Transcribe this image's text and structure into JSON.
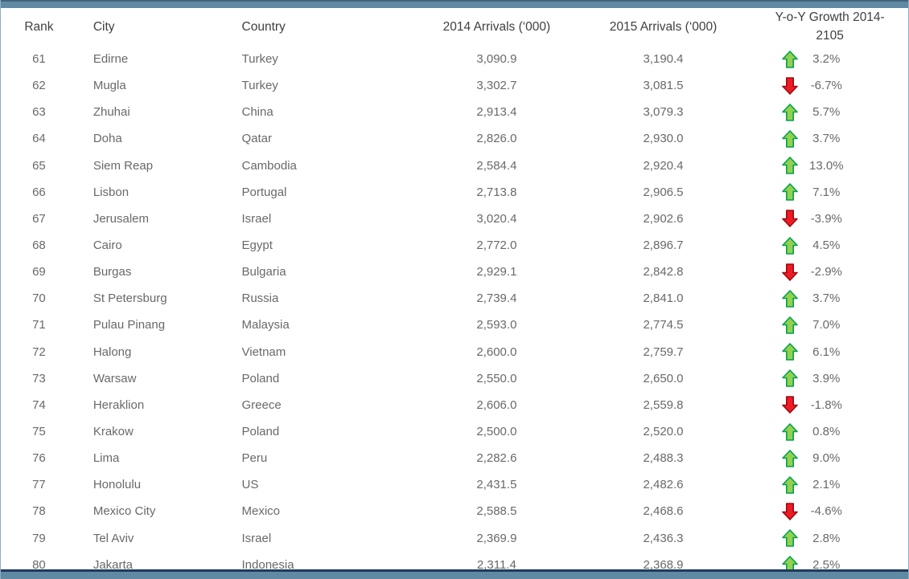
{
  "colors": {
    "top_bar": "#6089a4",
    "bottom_line": "#1f3a5c",
    "header_text": "#3f3f3f",
    "body_text": "#696969",
    "up_fill": "#92d050",
    "up_stroke": "#00a14b",
    "down_fill": "#ee1b24",
    "down_stroke": "#9e0b0f"
  },
  "table": {
    "columns": {
      "rank": "Rank",
      "city": "City",
      "country": "Country",
      "arrivals_2014": "2014 Arrivals (‘000)",
      "arrivals_2015": "2015 Arrivals (‘000)",
      "growth": "Y-o-Y Growth 2014-2105"
    },
    "rows": [
      {
        "rank": "61",
        "city": "Edirne",
        "country": "Turkey",
        "arrivals_2014": "3,090.9",
        "arrivals_2015": "3,190.4",
        "growth": "3.2%",
        "direction": "up"
      },
      {
        "rank": "62",
        "city": "Mugla",
        "country": "Turkey",
        "arrivals_2014": "3,302.7",
        "arrivals_2015": "3,081.5",
        "growth": "-6.7%",
        "direction": "down"
      },
      {
        "rank": "63",
        "city": "Zhuhai",
        "country": "China",
        "arrivals_2014": "2,913.4",
        "arrivals_2015": "3,079.3",
        "growth": "5.7%",
        "direction": "up"
      },
      {
        "rank": "64",
        "city": "Doha",
        "country": "Qatar",
        "arrivals_2014": "2,826.0",
        "arrivals_2015": "2,930.0",
        "growth": "3.7%",
        "direction": "up"
      },
      {
        "rank": "65",
        "city": "Siem Reap",
        "country": "Cambodia",
        "arrivals_2014": "2,584.4",
        "arrivals_2015": "2,920.4",
        "growth": "13.0%",
        "direction": "up"
      },
      {
        "rank": "66",
        "city": "Lisbon",
        "country": "Portugal",
        "arrivals_2014": "2,713.8",
        "arrivals_2015": "2,906.5",
        "growth": "7.1%",
        "direction": "up"
      },
      {
        "rank": "67",
        "city": "Jerusalem",
        "country": "Israel",
        "arrivals_2014": "3,020.4",
        "arrivals_2015": "2,902.6",
        "growth": "-3.9%",
        "direction": "down"
      },
      {
        "rank": "68",
        "city": "Cairo",
        "country": "Egypt",
        "arrivals_2014": "2,772.0",
        "arrivals_2015": "2,896.7",
        "growth": "4.5%",
        "direction": "up"
      },
      {
        "rank": "69",
        "city": "Burgas",
        "country": "Bulgaria",
        "arrivals_2014": "2,929.1",
        "arrivals_2015": "2,842.8",
        "growth": "-2.9%",
        "direction": "down"
      },
      {
        "rank": "70",
        "city": "St Petersburg",
        "country": "Russia",
        "arrivals_2014": "2,739.4",
        "arrivals_2015": "2,841.0",
        "growth": "3.7%",
        "direction": "up"
      },
      {
        "rank": "71",
        "city": "Pulau Pinang",
        "country": "Malaysia",
        "arrivals_2014": "2,593.0",
        "arrivals_2015": "2,774.5",
        "growth": "7.0%",
        "direction": "up"
      },
      {
        "rank": "72",
        "city": "Halong",
        "country": "Vietnam",
        "arrivals_2014": "2,600.0",
        "arrivals_2015": "2,759.7",
        "growth": "6.1%",
        "direction": "up"
      },
      {
        "rank": "73",
        "city": "Warsaw",
        "country": "Poland",
        "arrivals_2014": "2,550.0",
        "arrivals_2015": "2,650.0",
        "growth": "3.9%",
        "direction": "up"
      },
      {
        "rank": "74",
        "city": "Heraklion",
        "country": "Greece",
        "arrivals_2014": "2,606.0",
        "arrivals_2015": "2,559.8",
        "growth": "-1.8%",
        "direction": "down"
      },
      {
        "rank": "75",
        "city": "Krakow",
        "country": "Poland",
        "arrivals_2014": "2,500.0",
        "arrivals_2015": "2,520.0",
        "growth": "0.8%",
        "direction": "up"
      },
      {
        "rank": "76",
        "city": "Lima",
        "country": "Peru",
        "arrivals_2014": "2,282.6",
        "arrivals_2015": "2,488.3",
        "growth": "9.0%",
        "direction": "up"
      },
      {
        "rank": "77",
        "city": "Honolulu",
        "country": "US",
        "arrivals_2014": "2,431.5",
        "arrivals_2015": "2,482.6",
        "growth": "2.1%",
        "direction": "up"
      },
      {
        "rank": "78",
        "city": "Mexico City",
        "country": "Mexico",
        "arrivals_2014": "2,588.5",
        "arrivals_2015": "2,468.6",
        "growth": "-4.6%",
        "direction": "down"
      },
      {
        "rank": "79",
        "city": "Tel Aviv",
        "country": "Israel",
        "arrivals_2014": "2,369.9",
        "arrivals_2015": "2,436.3",
        "growth": "2.8%",
        "direction": "up"
      },
      {
        "rank": "80",
        "city": "Jakarta",
        "country": "Indonesia",
        "arrivals_2014": "2,311.4",
        "arrivals_2015": "2,368.9",
        "growth": "2.5%",
        "direction": "up"
      }
    ]
  },
  "chart_data": {
    "type": "table",
    "title": "Top City Destinations ranking, rows 61-80",
    "columns": [
      "Rank",
      "City",
      "Country",
      "2014 Arrivals (‘000)",
      "2015 Arrivals (‘000)",
      "Y-o-Y Growth 2014-2105"
    ],
    "rows": [
      [
        61,
        "Edirne",
        "Turkey",
        3090.9,
        3190.4,
        3.2
      ],
      [
        62,
        "Mugla",
        "Turkey",
        3302.7,
        3081.5,
        -6.7
      ],
      [
        63,
        "Zhuhai",
        "China",
        2913.4,
        3079.3,
        5.7
      ],
      [
        64,
        "Doha",
        "Qatar",
        2826.0,
        2930.0,
        3.7
      ],
      [
        65,
        "Siem Reap",
        "Cambodia",
        2584.4,
        2920.4,
        13.0
      ],
      [
        66,
        "Lisbon",
        "Portugal",
        2713.8,
        2906.5,
        7.1
      ],
      [
        67,
        "Jerusalem",
        "Israel",
        3020.4,
        2902.6,
        -3.9
      ],
      [
        68,
        "Cairo",
        "Egypt",
        2772.0,
        2896.7,
        4.5
      ],
      [
        69,
        "Burgas",
        "Bulgaria",
        2929.1,
        2842.8,
        -2.9
      ],
      [
        70,
        "St Petersburg",
        "Russia",
        2739.4,
        2841.0,
        3.7
      ],
      [
        71,
        "Pulau Pinang",
        "Malaysia",
        2593.0,
        2774.5,
        7.0
      ],
      [
        72,
        "Halong",
        "Vietnam",
        2600.0,
        2759.7,
        6.1
      ],
      [
        73,
        "Warsaw",
        "Poland",
        2550.0,
        2650.0,
        3.9
      ],
      [
        74,
        "Heraklion",
        "Greece",
        2606.0,
        2559.8,
        -1.8
      ],
      [
        75,
        "Krakow",
        "Poland",
        2500.0,
        2520.0,
        0.8
      ],
      [
        76,
        "Lima",
        "Peru",
        2282.6,
        2488.3,
        9.0
      ],
      [
        77,
        "Honolulu",
        "US",
        2431.5,
        2482.6,
        2.1
      ],
      [
        78,
        "Mexico City",
        "Mexico",
        2588.5,
        2468.6,
        -4.6
      ],
      [
        79,
        "Tel Aviv",
        "Israel",
        2369.9,
        2436.3,
        2.8
      ],
      [
        80,
        "Jakarta",
        "Indonesia",
        2311.4,
        2368.9,
        2.5
      ]
    ],
    "notes": "Growth column shows green block up-arrow for positive values, red block down-arrow for negative values. Header typo '2105' is present in the source image."
  }
}
